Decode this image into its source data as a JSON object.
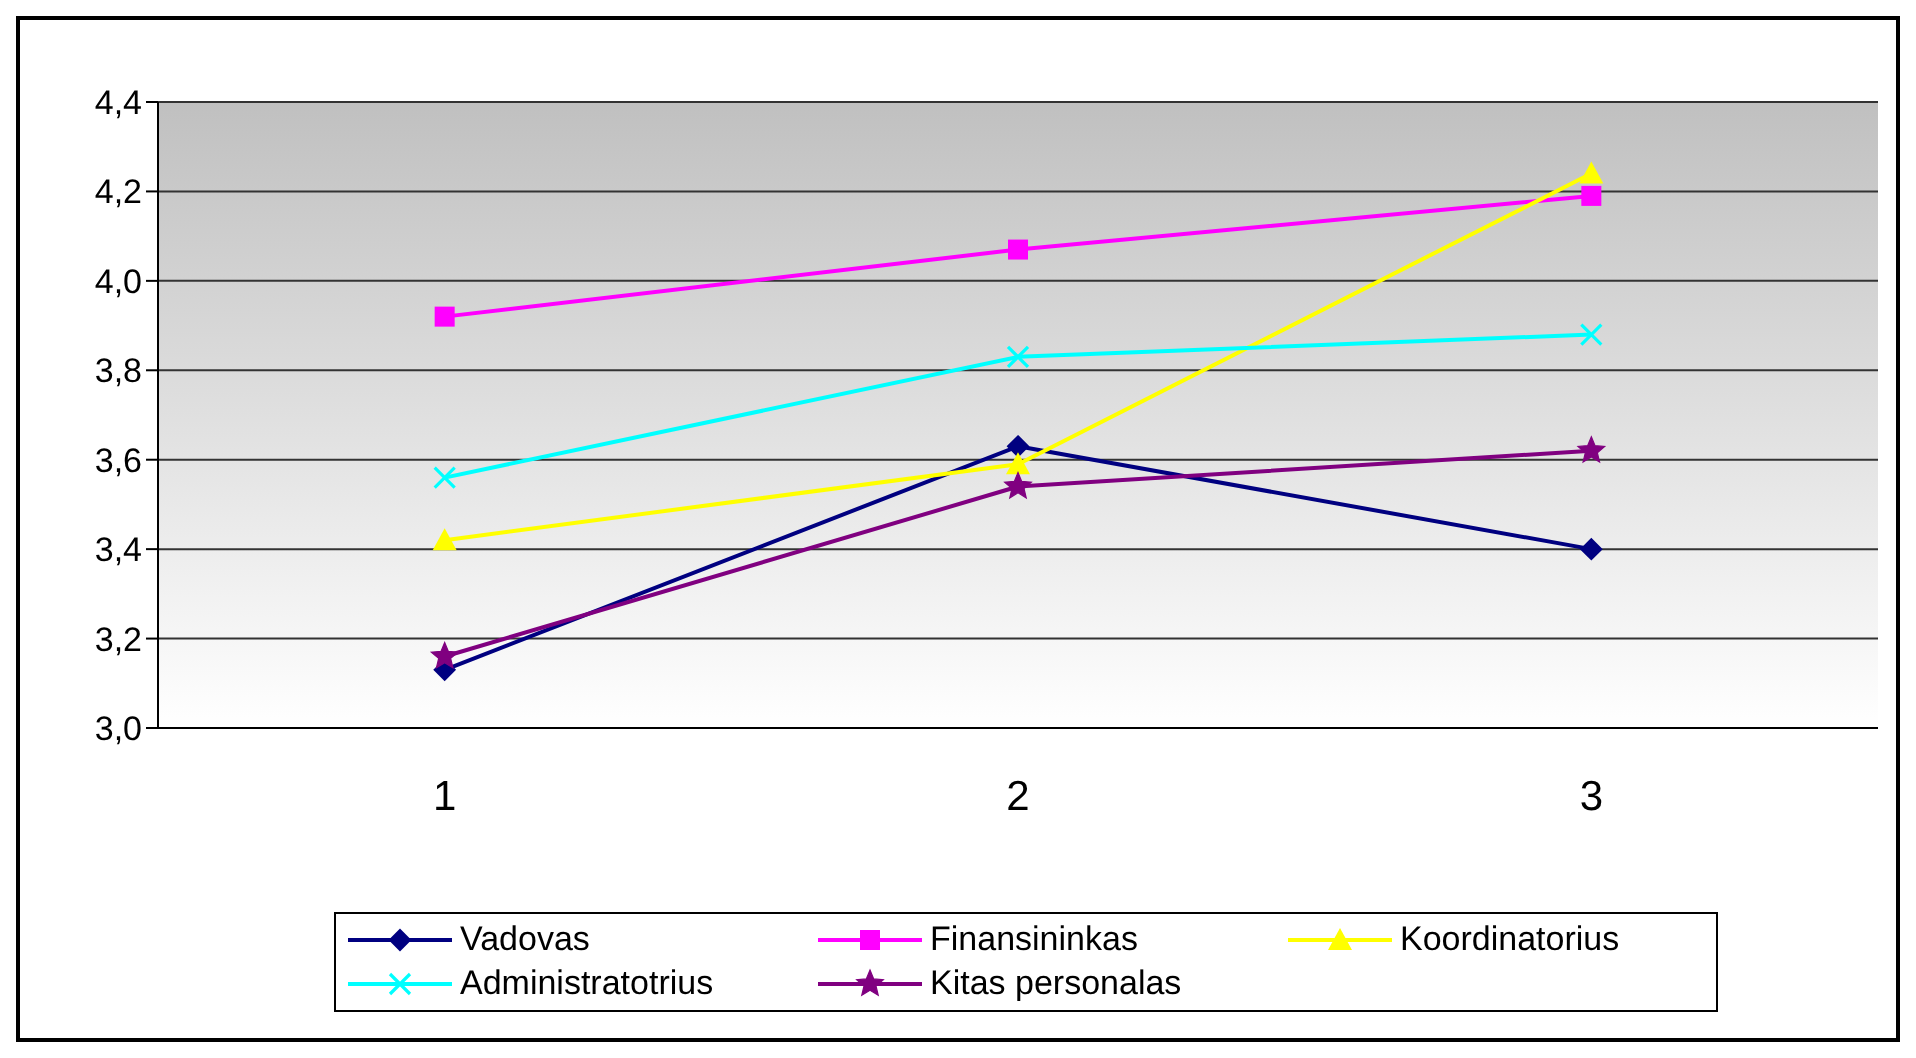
{
  "chart_data": {
    "type": "line",
    "categories": [
      "1",
      "2",
      "3"
    ],
    "ylim": [
      3.0,
      4.4
    ],
    "yticks": [
      {
        "value": 3.0,
        "label": "3,0"
      },
      {
        "value": 3.2,
        "label": "3,2"
      },
      {
        "value": 3.4,
        "label": "3,4"
      },
      {
        "value": 3.6,
        "label": "3,6"
      },
      {
        "value": 3.8,
        "label": "3,8"
      },
      {
        "value": 4.0,
        "label": "4,0"
      },
      {
        "value": 4.2,
        "label": "4,2"
      },
      {
        "value": 4.4,
        "label": "4,4"
      }
    ],
    "grid": "y",
    "legend": "bottom",
    "series": [
      {
        "name": "Vadovas",
        "color": "#000080",
        "marker": "diamond",
        "values": [
          3.13,
          3.63,
          3.4
        ]
      },
      {
        "name": "Finansininkas",
        "color": "#ff00ff",
        "marker": "square",
        "values": [
          3.92,
          4.07,
          4.19
        ]
      },
      {
        "name": "Koordinatorius",
        "color": "#ffff00",
        "marker": "triangle",
        "values": [
          3.42,
          3.59,
          4.24
        ]
      },
      {
        "name": "Administratotrius",
        "color": "#00ffff",
        "marker": "cross",
        "values": [
          3.56,
          3.83,
          3.88
        ]
      },
      {
        "name": "Kitas personalas",
        "color": "#800080",
        "marker": "star",
        "values": [
          3.16,
          3.54,
          3.62
        ]
      }
    ]
  }
}
